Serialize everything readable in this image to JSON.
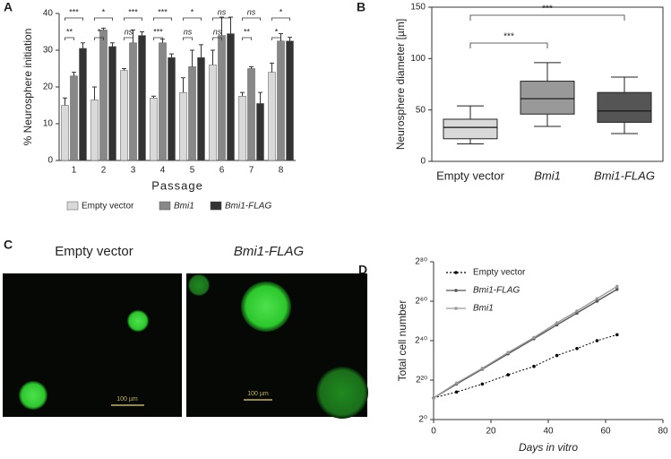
{
  "chart_data": [
    {
      "panel": "A",
      "type": "bar",
      "ylabel": "% Neurosphere initiation",
      "xlabel": "Passage",
      "categories": [
        "1",
        "2",
        "3",
        "4",
        "5",
        "6",
        "7",
        "8"
      ],
      "series": [
        {
          "name": "Empty vector",
          "color": "#d9d9d9",
          "values": [
            15,
            16.5,
            24.5,
            17,
            18.5,
            26,
            17.5,
            24
          ],
          "errors": [
            2,
            3.5,
            0.5,
            0.5,
            4,
            4,
            1,
            2.5
          ]
        },
        {
          "name": "Bmi1",
          "color": "#888888",
          "values": [
            23,
            35.5,
            32,
            32,
            25.5,
            34,
            25,
            32.5
          ],
          "errors": [
            1,
            0.5,
            3.5,
            1,
            4.5,
            5,
            0.5,
            2
          ]
        },
        {
          "name": "Bmi1-FLAG",
          "color": "#333333",
          "values": [
            30.5,
            31,
            34,
            28,
            28,
            34.5,
            15.5,
            32.5
          ],
          "errors": [
            1.5,
            1,
            1,
            1,
            3.5,
            4.5,
            3,
            1
          ]
        }
      ],
      "significance_top": [
        "***",
        "*",
        "***",
        "***",
        "*",
        "ns",
        "ns",
        "*"
      ],
      "significance_bottom": [
        "**",
        "*",
        "ns",
        "***",
        "ns",
        "ns",
        "**",
        "*"
      ],
      "ylim": [
        0,
        40
      ],
      "yticks": [
        0,
        10,
        20,
        30,
        40
      ]
    },
    {
      "panel": "B",
      "type": "box",
      "ylabel": "Neurosphere diameter [µm]",
      "categories": [
        "Empty vector",
        "Bmi1",
        "Bmi1-FLAG"
      ],
      "colors": [
        "#d9d9d9",
        "#999999",
        "#555555"
      ],
      "boxes": [
        {
          "min": 17,
          "q1": 22,
          "median": 33,
          "q3": 41,
          "max": 54
        },
        {
          "min": 34,
          "q1": 46,
          "median": 61,
          "q3": 78,
          "max": 96
        },
        {
          "min": 27,
          "q1": 38,
          "median": 49,
          "q3": 67,
          "max": 82
        }
      ],
      "significance": [
        "***",
        "***"
      ],
      "ylim": [
        0,
        150
      ],
      "yticks": [
        0,
        50,
        100,
        150
      ]
    },
    {
      "panel": "D",
      "type": "line",
      "ylabel": "Total cell number",
      "xlabel": "Days in vitro",
      "yscale": "log2",
      "series": [
        {
          "name": "Empty vector",
          "color": "#000000",
          "dash": true,
          "x": [
            0,
            8,
            17,
            26,
            35,
            43,
            50,
            57,
            64
          ],
          "values": [
            2000.0,
            16000.0,
            260000.0,
            6800000.0,
            130000000.0,
            6000000000.0,
            69000000000.0,
            1100000000000.0,
            8800000000000.0
          ]
        },
        {
          "name": "Bmi1-FLAG",
          "color": "#555555",
          "dash": false,
          "x": [
            0,
            8,
            17,
            26,
            35,
            43,
            50,
            57,
            64
          ],
          "values": [
            2000.0,
            260000.0,
            50000000.0,
            11000000000.0,
            2200000000000.0,
            280000000000000.0,
            1.8e+16,
            1.2e+18,
            7.4e+19
          ]
        },
        {
          "name": "Bmi1",
          "color": "#999999",
          "dash": false,
          "x": [
            0,
            8,
            17,
            26,
            35,
            43,
            50,
            57,
            64
          ],
          "values": [
            2000.0,
            370000.0,
            67000000.0,
            17000000000.0,
            3300000000000.0,
            560000000000000.0,
            3.6e+16,
            2.8e+18,
            2.1e+20
          ]
        }
      ],
      "xlim": [
        0,
        80
      ],
      "xticks": [
        0,
        20,
        40,
        60,
        80
      ],
      "ylim": [
        1,
        1.2089258196146292e+24
      ],
      "yticks": [
        {
          "value": 1,
          "label": "2⁰"
        },
        {
          "value": 1048576,
          "label": "2²⁰"
        },
        {
          "value": 1099511627776,
          "label": "2⁴⁰"
        },
        {
          "value": 1.152921504606847e+18,
          "label": "2⁶⁰"
        },
        {
          "value": 1.2089258196146292e+24,
          "label": "2⁸⁰"
        }
      ]
    }
  ],
  "panel_c": {
    "panel": "C",
    "titles": [
      "Empty vector",
      "Bmi1-FLAG"
    ],
    "scale_bars": [
      "100 µm",
      "100 µm"
    ]
  }
}
